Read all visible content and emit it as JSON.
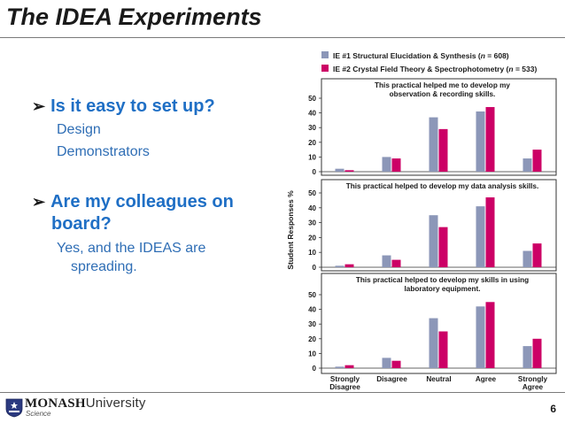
{
  "slide": {
    "title": "The IDEA Experiments",
    "page_number": "6"
  },
  "bullets": [
    {
      "text_lines": [
        "Is it easy to set up?"
      ],
      "sub": [
        "Design",
        "Demonstrators"
      ]
    },
    {
      "text_lines": [
        "Are my colleagues on",
        "board?"
      ],
      "sub": [
        "Yes, and the IDEAS are",
        "spreading."
      ]
    }
  ],
  "footer": {
    "logo_name": "MONASH",
    "logo_suffix": "University",
    "logo_sub": "Science",
    "logo_icon": "monash-crest-icon"
  },
  "colors": {
    "series1": "#8c97b8",
    "series2": "#cc0066",
    "bullet_text": "#1f6fc5"
  },
  "chart_data": [
    {
      "type": "bar",
      "title": "This practical helped me to develop my observation & recording skills.",
      "categories": [
        "Strongly Disagree",
        "Disagree",
        "Neutral",
        "Agree",
        "Strongly Agree"
      ],
      "series": [
        {
          "name": "IE #1 Structural Elucidation & Synthesis (n = 608)",
          "values": [
            2,
            10,
            37,
            41,
            9
          ]
        },
        {
          "name": "IE #2 Crystal Field Theory & Spectrophotometry (n = 533)",
          "values": [
            1,
            9,
            29,
            44,
            15
          ]
        }
      ],
      "ylabel": "Student Responses %",
      "ylim": [
        0,
        50
      ],
      "yticks": [
        0,
        10,
        20,
        30,
        40,
        50
      ],
      "legend": "top"
    },
    {
      "type": "bar",
      "title": "This practical helped to develop my data analysis skills.",
      "categories": [
        "Strongly Disagree",
        "Disagree",
        "Neutral",
        "Agree",
        "Strongly Agree"
      ],
      "series": [
        {
          "name": "IE #1 Structural Elucidation & Synthesis (n = 608)",
          "values": [
            1,
            8,
            35,
            41,
            11
          ]
        },
        {
          "name": "IE #2 Crystal Field Theory & Spectrophotometry (n = 533)",
          "values": [
            2,
            5,
            27,
            47,
            16
          ]
        }
      ],
      "ylim": [
        0,
        50
      ],
      "yticks": [
        0,
        10,
        20,
        30,
        40,
        50
      ]
    },
    {
      "type": "bar",
      "title": "This practical helped to develop my skills in using laboratory equipment.",
      "categories": [
        "Strongly Disagree",
        "Disagree",
        "Neutral",
        "Agree",
        "Strongly Agree"
      ],
      "series": [
        {
          "name": "IE #1 Structural Elucidation & Synthesis (n = 608)",
          "values": [
            1,
            7,
            34,
            42,
            15
          ]
        },
        {
          "name": "IE #2 Crystal Field Theory & Spectrophotometry (n = 533)",
          "values": [
            2,
            5,
            25,
            45,
            20
          ]
        }
      ],
      "ylim": [
        0,
        50
      ],
      "yticks": [
        0,
        10,
        20,
        30,
        40,
        50
      ]
    }
  ],
  "chart_labels": {
    "legend_1_prefix": "IE #1 Structural Elucidation & Synthesis (",
    "legend_1_n": "n",
    "legend_1_suffix": " = 608)",
    "legend_2_prefix": "IE #2 Crystal Field Theory & Spectrophotometry (",
    "legend_2_n": "n",
    "legend_2_suffix": " = 533)",
    "panel_titles": [
      [
        "This practical helped me to develop my",
        "observation & recording skills."
      ],
      [
        "This practical helped to develop my data analysis skills."
      ],
      [
        "This practical helped to develop my skills in using",
        "laboratory equipment."
      ]
    ],
    "category_labels": [
      [
        "Strongly",
        "Disagree"
      ],
      [
        "Disagree"
      ],
      [
        "Neutral"
      ],
      [
        "Agree"
      ],
      [
        "Strongly",
        "Agree"
      ]
    ]
  }
}
